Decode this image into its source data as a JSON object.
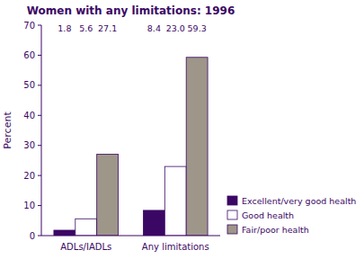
{
  "chart_data": {
    "type": "bar",
    "title": "Women with any limitations: 1996",
    "y_label": "Percent",
    "categories": [
      "ADLs/IADLs",
      "Any limitations"
    ],
    "series": [
      {
        "name": "Excellent/very good health",
        "color": "#3b0764",
        "values": [
          1.8,
          8.4
        ]
      },
      {
        "name": "Good health",
        "color": "#ffffff",
        "values": [
          5.6,
          23.0
        ],
        "value_labels": [
          "5.6",
          "23.0"
        ]
      },
      {
        "name": "Fair/poor health",
        "color": "#9e9689",
        "values": [
          27.1,
          59.3
        ]
      }
    ],
    "ylim": [
      0,
      70
    ],
    "yticks": [
      0,
      10,
      20,
      30,
      40,
      50,
      60,
      70
    ],
    "grid": false,
    "legend": "lower right",
    "data_labels": true
  }
}
